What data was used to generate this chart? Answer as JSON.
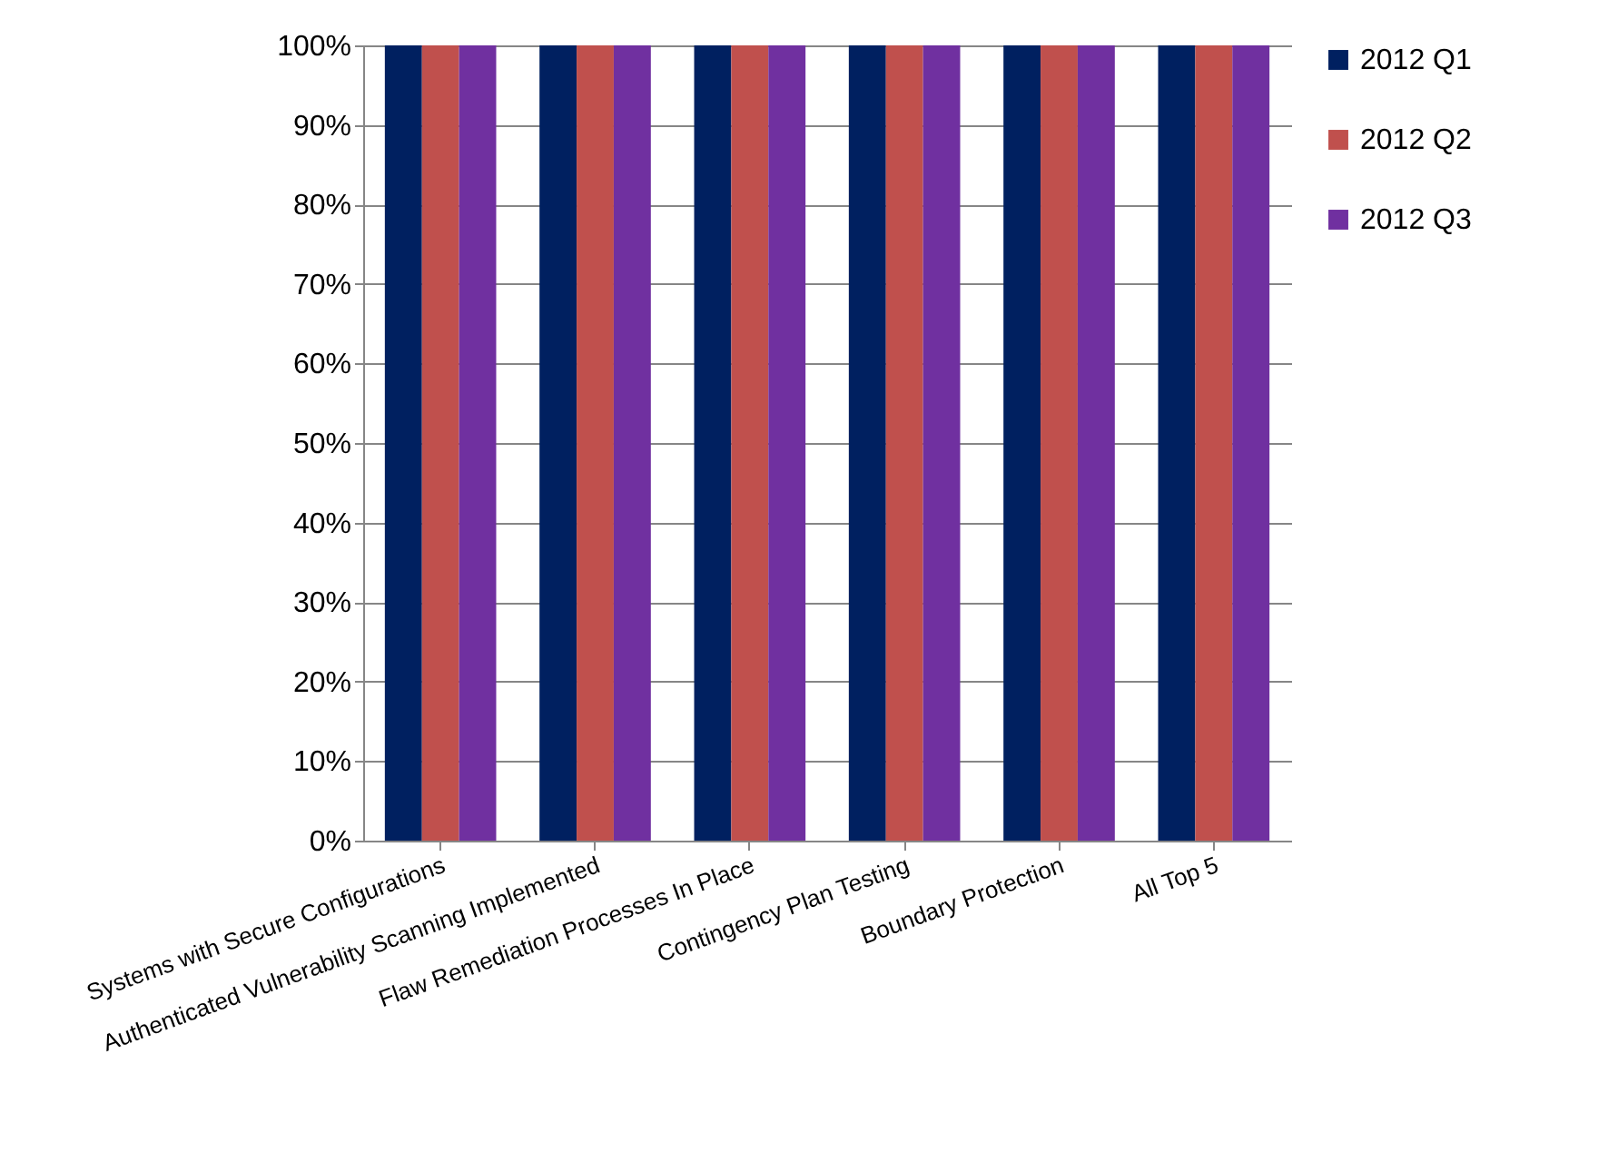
{
  "chart_data": {
    "type": "bar",
    "categories": [
      "Systems with Secure Configurations",
      "Authenticated Vulnerability Scanning Implemented",
      "Flaw Remediation Processes In Place",
      "Contingency Plan Testing",
      "Boundary Protection",
      "All Top 5"
    ],
    "series": [
      {
        "name": "2012 Q1",
        "color": "#002060",
        "values": [
          100,
          100,
          100,
          100,
          100,
          100
        ]
      },
      {
        "name": "2012 Q2",
        "color": "#c0504d",
        "values": [
          100,
          100,
          100,
          100,
          100,
          100
        ]
      },
      {
        "name": "2012 Q3",
        "color": "#7030a0",
        "values": [
          100,
          100,
          100,
          100,
          100,
          100
        ]
      }
    ],
    "ylim": [
      0,
      100
    ],
    "yticks": [
      {
        "value": 0,
        "label": "0%"
      },
      {
        "value": 10,
        "label": "10%"
      },
      {
        "value": 20,
        "label": "20%"
      },
      {
        "value": 30,
        "label": "30%"
      },
      {
        "value": 40,
        "label": "40%"
      },
      {
        "value": 50,
        "label": "50%"
      },
      {
        "value": 60,
        "label": "60%"
      },
      {
        "value": 70,
        "label": "70%"
      },
      {
        "value": 80,
        "label": "80%"
      },
      {
        "value": 90,
        "label": "90%"
      },
      {
        "value": 100,
        "label": "100%"
      }
    ],
    "grid": "y",
    "legend": "right"
  }
}
